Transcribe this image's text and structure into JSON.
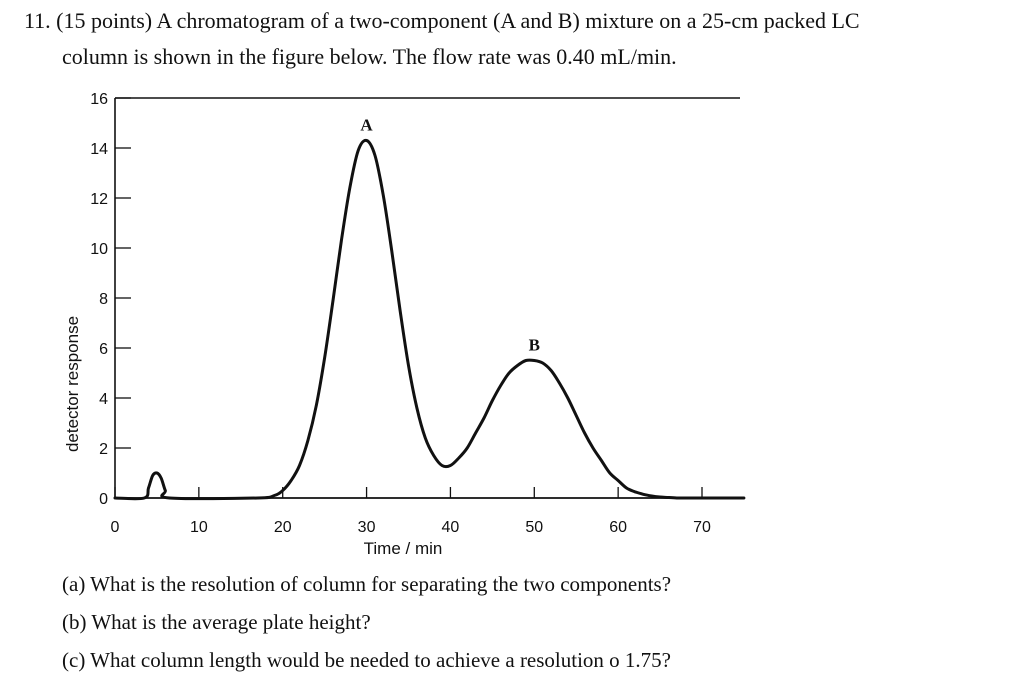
{
  "question": {
    "line1": "11. (15 points) A chromatogram of a two-component (A and B) mixture on a 25-cm packed LC",
    "line2": "column is shown in the figure below. The flow rate was 0.40 mL/min.",
    "sub_questions": [
      "(a) What is the resolution of column for separating the two components?",
      "(b) What is the average plate height?",
      "(c) What column length would be needed to achieve a resolution o 1.75?"
    ]
  },
  "chart_data": {
    "type": "line",
    "title": "",
    "xlabel": "Time / min",
    "ylabel": "detector response",
    "xlim": [
      0,
      75
    ],
    "ylim": [
      0,
      16
    ],
    "x_ticks": [
      0,
      10,
      20,
      30,
      40,
      50,
      60,
      70
    ],
    "y_ticks": [
      0,
      2,
      4,
      6,
      8,
      10,
      12,
      14,
      16
    ],
    "grid": false,
    "series": [
      {
        "x": [
          0,
          3.5,
          4.0,
          4.5,
          5.0,
          5.5,
          6.0,
          6.5,
          17,
          19,
          20,
          21,
          22,
          23,
          24,
          25,
          26,
          27,
          28,
          29,
          30,
          31,
          32,
          33,
          34,
          35,
          36,
          37,
          38,
          39,
          40,
          41,
          42,
          43,
          44,
          45,
          46,
          47,
          48,
          49,
          50,
          51,
          52,
          53,
          54,
          55,
          56,
          57,
          58,
          59,
          60,
          61,
          62,
          63,
          64,
          65,
          66,
          67,
          68,
          69,
          70,
          75
        ],
        "y": [
          0,
          0,
          0.4,
          0.9,
          1.0,
          0.8,
          0.3,
          0,
          0,
          0.1,
          0.3,
          0.7,
          1.3,
          2.3,
          3.7,
          5.6,
          7.9,
          10.3,
          12.4,
          13.9,
          14.3,
          13.7,
          12.1,
          9.9,
          7.5,
          5.3,
          3.6,
          2.4,
          1.7,
          1.3,
          1.3,
          1.6,
          2.0,
          2.6,
          3.2,
          3.9,
          4.5,
          5.0,
          5.3,
          5.5,
          5.5,
          5.4,
          5.1,
          4.6,
          4.0,
          3.3,
          2.6,
          2.0,
          1.5,
          1.0,
          0.7,
          0.4,
          0.25,
          0.15,
          0.08,
          0.04,
          0.02,
          0,
          0,
          0,
          0,
          0
        ]
      }
    ],
    "annotations": [
      {
        "text": "A",
        "x": 30,
        "y": 14.3
      },
      {
        "text": "B",
        "x": 50,
        "y": 5.5
      }
    ]
  }
}
